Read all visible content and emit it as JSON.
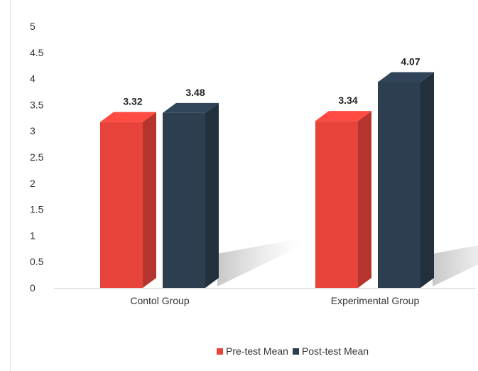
{
  "chart_data": {
    "type": "bar",
    "categories": [
      "Contol Group",
      "Experimental Group"
    ],
    "series": [
      {
        "name": "Pre-test Mean",
        "values": [
          3.32,
          3.34
        ],
        "color": "#e8433a"
      },
      {
        "name": "Post-test Mean",
        "values": [
          3.48,
          4.07
        ],
        "color": "#2c3e50"
      }
    ],
    "y_ticks": [
      "0",
      "0.5",
      "1",
      "1.5",
      "2",
      "2.5",
      "3",
      "3.5",
      "4",
      "4.5",
      "5"
    ],
    "ylim": [
      0,
      5
    ],
    "grid": false,
    "legend_position": "bottom",
    "style": "3d-column"
  }
}
